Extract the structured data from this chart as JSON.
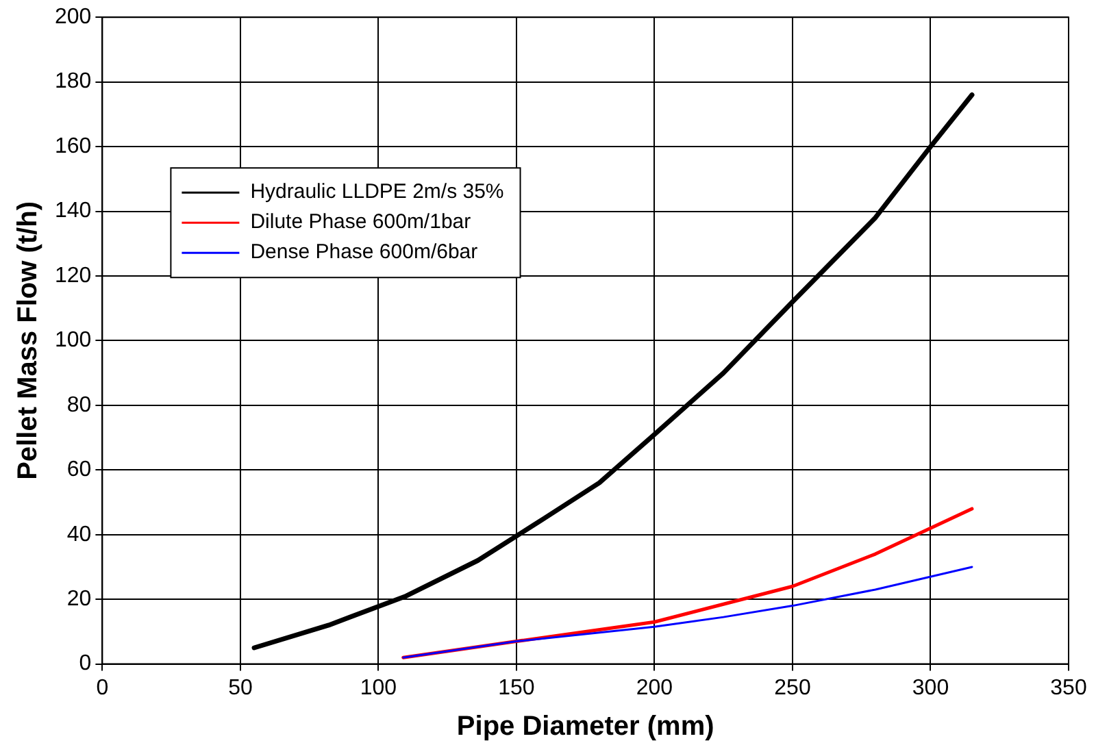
{
  "chart_data": {
    "type": "line",
    "xlabel": "Pipe Diameter (mm)",
    "ylabel": "Pellet Mass Flow (t/h)",
    "xlim": [
      0,
      350
    ],
    "xticks": [
      0,
      50,
      100,
      150,
      200,
      250,
      300,
      350
    ],
    "ylim": [
      0,
      200
    ],
    "yticks": [
      0,
      20,
      40,
      60,
      80,
      100,
      120,
      140,
      160,
      180,
      200
    ],
    "grid": true,
    "legend": "top left",
    "marker": "none",
    "line_style": "solid",
    "series": [
      {
        "name": "Hydraulic LLDPE 2m/s 35%",
        "color": "#000000",
        "x": [
          55,
          82,
          110,
          136,
          160,
          180,
          200,
          225,
          250,
          280,
          300,
          315
        ],
        "values": [
          5,
          12,
          21,
          32,
          45,
          56,
          71,
          90,
          112,
          138,
          160,
          176
        ]
      },
      {
        "name": "Dilute Phase 600m/1bar",
        "color": "#ff0000",
        "x": [
          109,
          150,
          200,
          225,
          250,
          280,
          315
        ],
        "values": [
          2,
          7,
          13,
          18.5,
          24,
          34,
          48
        ]
      },
      {
        "name": "Dense Phase 600m/6bar",
        "color": "#0000ff",
        "x": [
          109,
          150,
          200,
          225,
          250,
          280,
          315
        ],
        "values": [
          2,
          7,
          11.5,
          14.5,
          18,
          23,
          30
        ]
      }
    ]
  }
}
